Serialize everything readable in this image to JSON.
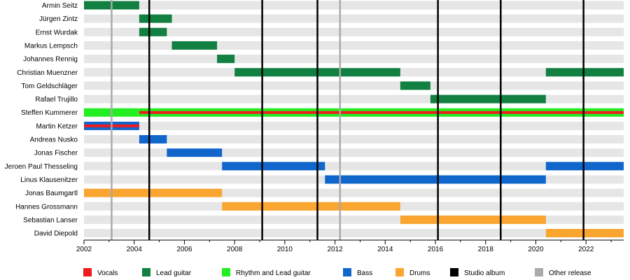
{
  "chart_data": {
    "type": "timeline",
    "xlim": [
      2002,
      2023.5
    ],
    "x_ticks": [
      "2002",
      "2004",
      "2006",
      "2008",
      "2010",
      "2012",
      "2014",
      "2016",
      "2018",
      "2020",
      "2022"
    ],
    "members": [
      {
        "name": "Armin Seitz",
        "spans": [
          {
            "role": "Lead guitar",
            "start": 2002.0,
            "end": 2004.2
          }
        ]
      },
      {
        "name": "Jürgen Zintz",
        "spans": [
          {
            "role": "Lead guitar",
            "start": 2004.2,
            "end": 2005.5
          }
        ]
      },
      {
        "name": "Ernst Wurdak",
        "spans": [
          {
            "role": "Lead guitar",
            "start": 2004.2,
            "end": 2005.3
          }
        ]
      },
      {
        "name": "Markus Lempsch",
        "spans": [
          {
            "role": "Lead guitar",
            "start": 2005.5,
            "end": 2007.3
          }
        ]
      },
      {
        "name": "Johannes Rennig",
        "spans": [
          {
            "role": "Lead guitar",
            "start": 2007.3,
            "end": 2008.0
          }
        ]
      },
      {
        "name": "Christian Muenzner",
        "spans": [
          {
            "role": "Lead guitar",
            "start": 2008.0,
            "end": 2014.6
          },
          {
            "role": "Lead guitar",
            "start": 2020.4,
            "end": 2023.5
          }
        ]
      },
      {
        "name": "Tom Geldschläger",
        "spans": [
          {
            "role": "Lead guitar",
            "start": 2014.6,
            "end": 2015.8
          }
        ]
      },
      {
        "name": "Rafael Trujillo",
        "spans": [
          {
            "role": "Lead guitar",
            "start": 2015.8,
            "end": 2020.4
          }
        ]
      },
      {
        "name": "Steffen Kummerer",
        "spans": [
          {
            "role": "Rhythm and Lead guitar",
            "start": 2002.0,
            "end": 2004.2
          },
          {
            "role": "Rhythm and Lead guitar",
            "start": 2004.2,
            "end": 2023.5,
            "secondary": "Vocals"
          }
        ]
      },
      {
        "name": "Martin Ketzer",
        "spans": [
          {
            "role": "Bass",
            "start": 2002.0,
            "end": 2004.2,
            "secondary": "Vocals"
          }
        ]
      },
      {
        "name": "Andreas Nusko",
        "spans": [
          {
            "role": "Bass",
            "start": 2004.2,
            "end": 2005.3
          }
        ]
      },
      {
        "name": "Jonas Fischer",
        "spans": [
          {
            "role": "Bass",
            "start": 2005.3,
            "end": 2007.5
          }
        ]
      },
      {
        "name": "Jeroen Paul Thesseling",
        "spans": [
          {
            "role": "Bass",
            "start": 2007.5,
            "end": 2011.6
          },
          {
            "role": "Bass",
            "start": 2020.4,
            "end": 2023.5
          }
        ]
      },
      {
        "name": "Linus Klausenitzer",
        "spans": [
          {
            "role": "Bass",
            "start": 2011.6,
            "end": 2020.4
          }
        ]
      },
      {
        "name": "Jonas Baumgartl",
        "spans": [
          {
            "role": "Drums",
            "start": 2002.0,
            "end": 2007.5
          }
        ]
      },
      {
        "name": "Hannes Grossmann",
        "spans": [
          {
            "role": "Drums",
            "start": 2007.5,
            "end": 2014.6
          }
        ]
      },
      {
        "name": "Sebastian Lanser",
        "spans": [
          {
            "role": "Drums",
            "start": 2014.6,
            "end": 2020.4
          }
        ]
      },
      {
        "name": "David Diepold",
        "spans": [
          {
            "role": "Drums",
            "start": 2020.4,
            "end": 2023.5
          }
        ]
      }
    ],
    "studio_albums": [
      2004.6,
      2009.1,
      2011.3,
      2016.1,
      2018.6,
      2021.9
    ],
    "other_releases": [
      2003.1,
      2012.2
    ],
    "legend": [
      {
        "label": "Vocals",
        "color": "#ee1c1c"
      },
      {
        "label": "Lead guitar",
        "color": "#118040"
      },
      {
        "label": "Rhythm and Lead guitar",
        "color": "#22ee22"
      },
      {
        "label": "Bass",
        "color": "#1166cc"
      },
      {
        "label": "Drums",
        "color": "#f9a530"
      },
      {
        "label": "Studio album",
        "color": "#000000"
      },
      {
        "label": "Other release",
        "color": "#aaaaaa"
      }
    ],
    "colors": {
      "Vocals": "#ee1c1c",
      "Lead guitar": "#118040",
      "Rhythm and Lead guitar": "#22ee22",
      "Bass": "#1166cc",
      "Drums": "#f9a530",
      "Studio album": "#000000",
      "Other release": "#aaaaaa",
      "row_background": "#e6e6e6"
    }
  }
}
